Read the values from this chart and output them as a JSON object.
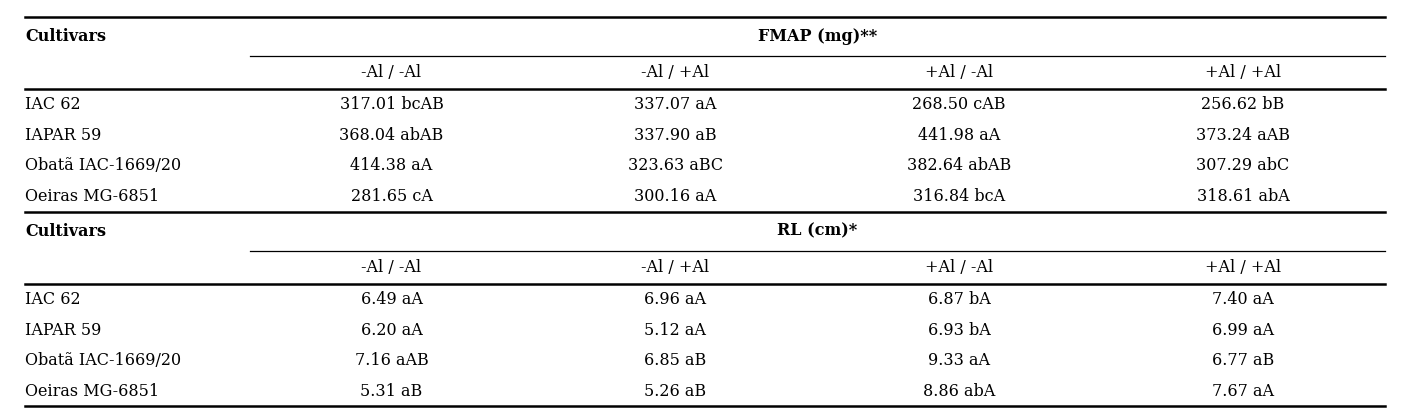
{
  "fmap_header": "FMAP (mg)**",
  "rl_header": "RL (cm)*",
  "col_headers": [
    "-Al / -Al",
    "-Al / +Al",
    "+Al / -Al",
    "+Al / +Al"
  ],
  "cultivars_label": "Cultivars",
  "fmap_rows": [
    [
      "IAC 62",
      "317.01 bcAB",
      "337.07 aA",
      "268.50 cAB",
      "256.62 bB"
    ],
    [
      "IAPAR 59",
      "368.04 abAB",
      "337.90 aB",
      "441.98 aA",
      "373.24 aAB"
    ],
    [
      "Obatã IAC-1669/20",
      "414.38 aA",
      "323.63 aBC",
      "382.64 abAB",
      "307.29 abC"
    ],
    [
      "Oeiras MG-6851",
      "281.65 cA",
      "300.16 aA",
      "316.84 bcA",
      "318.61 abA"
    ]
  ],
  "rl_rows": [
    [
      "IAC 62",
      "6.49 aA",
      "6.96 aA",
      "6.87 bA",
      "7.40 aA"
    ],
    [
      "IAPAR 59",
      "6.20 aA",
      "5.12 aA",
      "6.93 bA",
      "6.99 aA"
    ],
    [
      "Obatã IAC-1669/20",
      "7.16 aAB",
      "6.85 aB",
      "9.33 aA",
      "6.77 aB"
    ],
    [
      "Oeiras MG-6851",
      "5.31 aB",
      "5.26 aB",
      "8.86 abA",
      "7.67 aA"
    ]
  ],
  "bg_color": "#ffffff",
  "text_color": "#000000",
  "line_color": "#000000",
  "font_size": 11.5,
  "figwidth": 14.06,
  "figheight": 4.19,
  "dpi": 100
}
